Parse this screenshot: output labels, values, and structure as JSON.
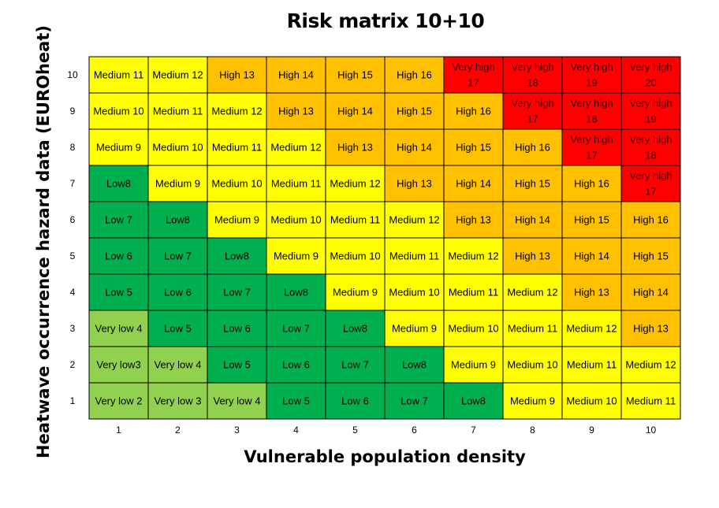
{
  "title": "Risk matrix 10+10",
  "chart_data": {
    "type": "heatmap",
    "title": "Risk matrix 10+10",
    "xlabel": "Vulnerable population density",
    "ylabel": "Heatwave occurrence hazard data (EUROheat)",
    "x_ticks": [
      "1",
      "2",
      "3",
      "4",
      "5",
      "6",
      "7",
      "8",
      "9",
      "10"
    ],
    "y_ticks": [
      "1",
      "2",
      "3",
      "4",
      "5",
      "6",
      "7",
      "8",
      "9",
      "10"
    ],
    "grid": true,
    "colors": {
      "very_low": "#92d050",
      "low": "#00b050",
      "medium": "#ffff00",
      "high": "#ffc000",
      "very_high": "#ff0000"
    },
    "rows": [
      {
        "y": 10,
        "cells": [
          {
            "label": "Medium 11",
            "level": "medium"
          },
          {
            "label": "Medium 12",
            "level": "medium"
          },
          {
            "label": "High 13",
            "level": "high"
          },
          {
            "label": "High 14",
            "level": "high"
          },
          {
            "label": "High 15",
            "level": "high"
          },
          {
            "label": "High 16",
            "level": "high"
          },
          {
            "label": "Very high 17",
            "level": "very_high"
          },
          {
            "label": "Very high 18",
            "level": "very_high"
          },
          {
            "label": "Very high 19",
            "level": "very_high"
          },
          {
            "label": "Very high 20",
            "level": "very_high"
          }
        ]
      },
      {
        "y": 9,
        "cells": [
          {
            "label": "Medium 10",
            "level": "medium"
          },
          {
            "label": "Medium 11",
            "level": "medium"
          },
          {
            "label": "Medium 12",
            "level": "medium"
          },
          {
            "label": "High 13",
            "level": "high"
          },
          {
            "label": "High 14",
            "level": "high"
          },
          {
            "label": "High 15",
            "level": "high"
          },
          {
            "label": "High 16",
            "level": "high"
          },
          {
            "label": "Very high 17",
            "level": "very_high"
          },
          {
            "label": "Very high 18",
            "level": "very_high"
          },
          {
            "label": "Very high 19",
            "level": "very_high"
          }
        ]
      },
      {
        "y": 8,
        "cells": [
          {
            "label": "Medium 9",
            "level": "medium"
          },
          {
            "label": "Medium 10",
            "level": "medium"
          },
          {
            "label": "Medium 11",
            "level": "medium"
          },
          {
            "label": "Medium 12",
            "level": "medium"
          },
          {
            "label": "High 13",
            "level": "high"
          },
          {
            "label": "High 14",
            "level": "high"
          },
          {
            "label": "High 15",
            "level": "high"
          },
          {
            "label": "High 16",
            "level": "high"
          },
          {
            "label": "Very high 17",
            "level": "very_high"
          },
          {
            "label": "Very high 18",
            "level": "very_high"
          }
        ]
      },
      {
        "y": 7,
        "cells": [
          {
            "label": "Low8",
            "level": "low"
          },
          {
            "label": "Medium 9",
            "level": "medium"
          },
          {
            "label": "Medium 10",
            "level": "medium"
          },
          {
            "label": "Medium 11",
            "level": "medium"
          },
          {
            "label": "Medium 12",
            "level": "medium"
          },
          {
            "label": "High 13",
            "level": "high"
          },
          {
            "label": "High 14",
            "level": "high"
          },
          {
            "label": "High 15",
            "level": "high"
          },
          {
            "label": "High 16",
            "level": "high"
          },
          {
            "label": "Very high 17",
            "level": "very_high"
          }
        ]
      },
      {
        "y": 6,
        "cells": [
          {
            "label": "Low 7",
            "level": "low"
          },
          {
            "label": "Low8",
            "level": "low"
          },
          {
            "label": "Medium 9",
            "level": "medium"
          },
          {
            "label": "Medium 10",
            "level": "medium"
          },
          {
            "label": "Medium 11",
            "level": "medium"
          },
          {
            "label": "Medium 12",
            "level": "medium"
          },
          {
            "label": "High 13",
            "level": "high"
          },
          {
            "label": "High 14",
            "level": "high"
          },
          {
            "label": "High 15",
            "level": "high"
          },
          {
            "label": "High 16",
            "level": "high"
          }
        ]
      },
      {
        "y": 5,
        "cells": [
          {
            "label": "Low 6",
            "level": "low"
          },
          {
            "label": "Low 7",
            "level": "low"
          },
          {
            "label": "Low8",
            "level": "low"
          },
          {
            "label": "Medium 9",
            "level": "medium"
          },
          {
            "label": "Medium 10",
            "level": "medium"
          },
          {
            "label": "Medium 11",
            "level": "medium"
          },
          {
            "label": "Medium 12",
            "level": "medium"
          },
          {
            "label": "High 13",
            "level": "high"
          },
          {
            "label": "High 14",
            "level": "high"
          },
          {
            "label": "High 15",
            "level": "high"
          }
        ]
      },
      {
        "y": 4,
        "cells": [
          {
            "label": "Low 5",
            "level": "low"
          },
          {
            "label": "Low 6",
            "level": "low"
          },
          {
            "label": "Low 7",
            "level": "low"
          },
          {
            "label": "Low8",
            "level": "low"
          },
          {
            "label": "Medium 9",
            "level": "medium"
          },
          {
            "label": "Medium 10",
            "level": "medium"
          },
          {
            "label": "Medium 11",
            "level": "medium"
          },
          {
            "label": "Medium 12",
            "level": "medium"
          },
          {
            "label": "High 13",
            "level": "high"
          },
          {
            "label": "High 14",
            "level": "high"
          }
        ]
      },
      {
        "y": 3,
        "cells": [
          {
            "label": "Very low 4",
            "level": "very_low"
          },
          {
            "label": "Low 5",
            "level": "low"
          },
          {
            "label": "Low 6",
            "level": "low"
          },
          {
            "label": "Low 7",
            "level": "low"
          },
          {
            "label": "Low8",
            "level": "low"
          },
          {
            "label": "Medium 9",
            "level": "medium"
          },
          {
            "label": "Medium 10",
            "level": "medium"
          },
          {
            "label": "Medium 11",
            "level": "medium"
          },
          {
            "label": "Medium 12",
            "level": "medium"
          },
          {
            "label": "High 13",
            "level": "high"
          }
        ]
      },
      {
        "y": 2,
        "cells": [
          {
            "label": "Very low3",
            "level": "very_low"
          },
          {
            "label": "Very low 4",
            "level": "very_low"
          },
          {
            "label": "Low 5",
            "level": "low"
          },
          {
            "label": "Low 6",
            "level": "low"
          },
          {
            "label": "Low 7",
            "level": "low"
          },
          {
            "label": "Low8",
            "level": "low"
          },
          {
            "label": "Medium 9",
            "level": "medium"
          },
          {
            "label": "Medium 10",
            "level": "medium"
          },
          {
            "label": "Medium 11",
            "level": "medium"
          },
          {
            "label": "Medium 12",
            "level": "medium"
          }
        ]
      },
      {
        "y": 1,
        "cells": [
          {
            "label": "Very low 2",
            "level": "very_low"
          },
          {
            "label": "Very low 3",
            "level": "very_low"
          },
          {
            "label": "Very low 4",
            "level": "very_low"
          },
          {
            "label": "Low 5",
            "level": "low"
          },
          {
            "label": "Low 6",
            "level": "low"
          },
          {
            "label": "Low 7",
            "level": "low"
          },
          {
            "label": "Low8",
            "level": "low"
          },
          {
            "label": "Medium 9",
            "level": "medium"
          },
          {
            "label": "Medium 10",
            "level": "medium"
          },
          {
            "label": "Medium 11",
            "level": "medium"
          }
        ]
      }
    ]
  }
}
